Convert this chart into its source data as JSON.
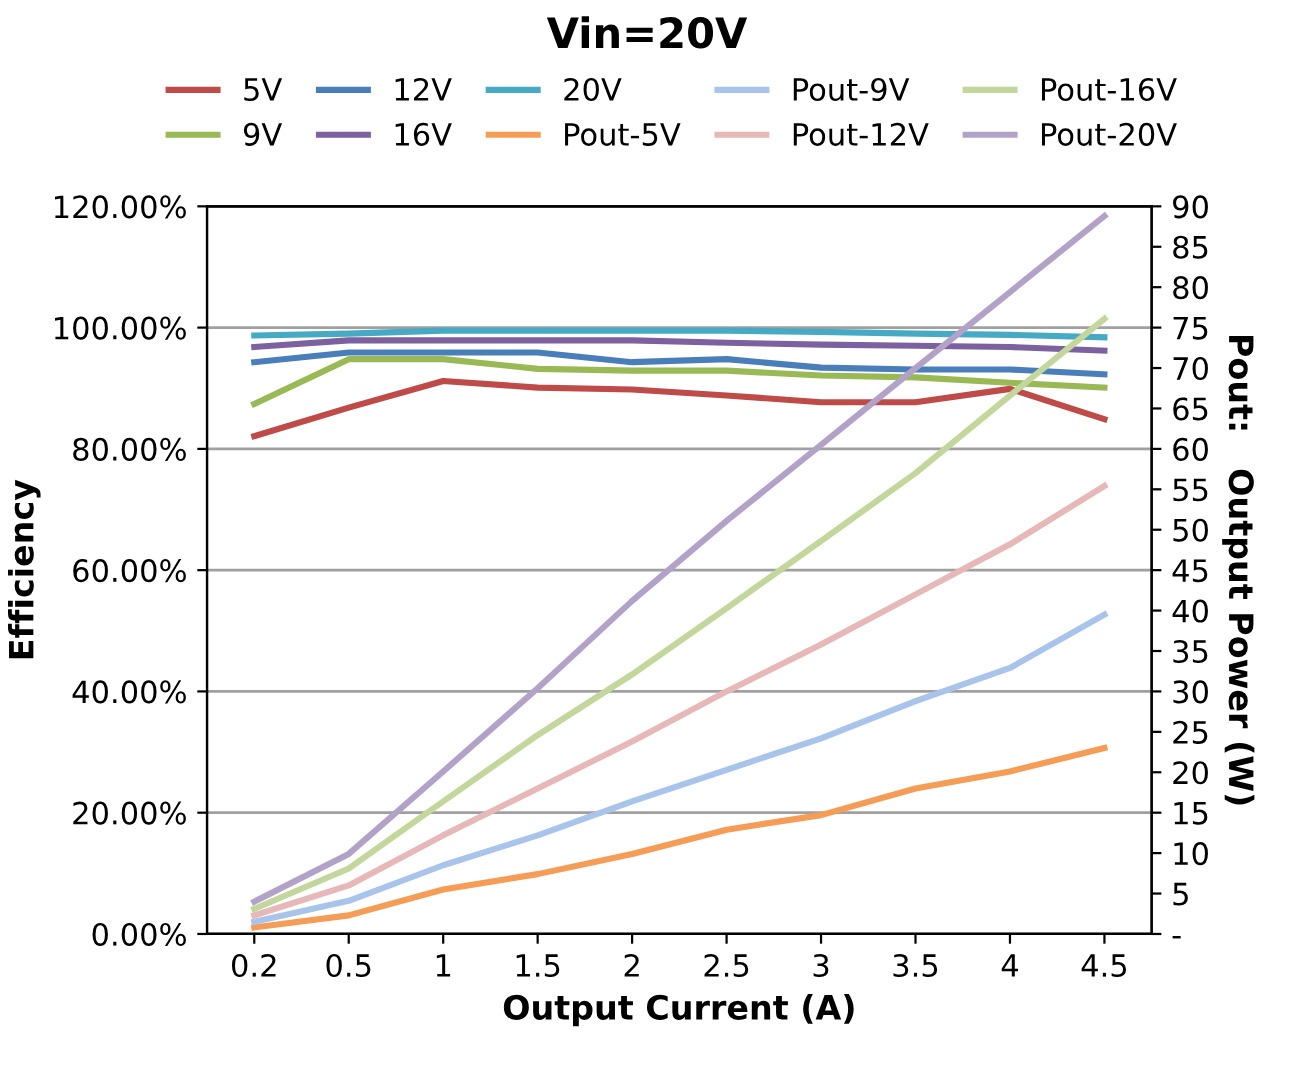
{
  "chart_data": {
    "type": "line",
    "title": "Vin=20V",
    "xlabel": "Output Current (A)",
    "ylabel": "Efficiency",
    "y2label": "Pout:   Output Power (W)",
    "categories": [
      "0.2",
      "0.5",
      "1",
      "1.5",
      "2",
      "2.5",
      "3",
      "3.5",
      "4",
      "4.5"
    ],
    "series": [
      {
        "name": "5V",
        "color": "#be4b48",
        "values": [
          82.1,
          86.8,
          91.2,
          90.1,
          89.8,
          88.8,
          87.7,
          87.7,
          89.9,
          84.9
        ]
      },
      {
        "name": "9V",
        "color": "#98b954",
        "values": [
          87.4,
          94.8,
          94.8,
          93.2,
          92.9,
          92.9,
          92.1,
          91.8,
          90.9,
          90.1
        ]
      },
      {
        "name": "12V",
        "color": "#4a7ebb",
        "values": [
          94.3,
          95.9,
          95.9,
          95.9,
          94.3,
          94.8,
          93.4,
          93.1,
          93.1,
          92.3
        ]
      },
      {
        "name": "16V",
        "color": "#7d60a0",
        "values": [
          96.8,
          97.9,
          97.9,
          97.9,
          97.9,
          97.5,
          97.2,
          97.0,
          96.8,
          96.2
        ]
      },
      {
        "name": "20V",
        "color": "#46aac5",
        "values": [
          98.7,
          99.0,
          99.5,
          99.5,
          99.5,
          99.5,
          99.3,
          99.0,
          98.8,
          98.4
        ]
      },
      {
        "name": "Pout-5V",
        "color": "#f59d56",
        "axis": "y2",
        "values": [
          0.8,
          2.3,
          5.5,
          7.4,
          9.9,
          12.9,
          14.7,
          18.0,
          20.1,
          23.0
        ]
      },
      {
        "name": "Pout-9V",
        "color": "#a9c4eb",
        "axis": "y2",
        "values": [
          1.5,
          4.1,
          8.5,
          12.2,
          16.4,
          20.3,
          24.2,
          28.8,
          32.9,
          39.5
        ]
      },
      {
        "name": "Pout-12V",
        "color": "#e6b9b8",
        "axis": "y2",
        "values": [
          2.3,
          6.0,
          12.2,
          18.0,
          23.8,
          30.0,
          35.8,
          42.0,
          48.2,
          55.4
        ]
      },
      {
        "name": "Pout-16V",
        "color": "#c3d69b",
        "axis": "y2",
        "values": [
          3.1,
          8.1,
          16.4,
          24.6,
          32.1,
          40.3,
          48.6,
          57.0,
          66.6,
          76.1
        ]
      },
      {
        "name": "Pout-20V",
        "color": "#b3a2c7",
        "axis": "y2",
        "values": [
          4.0,
          9.9,
          20.1,
          30.4,
          41.2,
          51.1,
          60.5,
          70.0,
          79.4,
          88.8
        ]
      }
    ],
    "ylim": [
      0,
      120
    ],
    "yticks": [
      {
        "value": 0,
        "label": "0.00%"
      },
      {
        "value": 20,
        "label": "20.00%"
      },
      {
        "value": 40,
        "label": "40.00%"
      },
      {
        "value": 60,
        "label": "60.00%"
      },
      {
        "value": 80,
        "label": "80.00%"
      },
      {
        "value": 100,
        "label": "100.00%"
      },
      {
        "value": 120,
        "label": "120.00%"
      }
    ],
    "y2lim": [
      0,
      90
    ],
    "y2ticks": [
      {
        "value": 0,
        "label": "-"
      },
      5,
      10,
      15,
      20,
      25,
      30,
      35,
      40,
      45,
      50,
      55,
      60,
      65,
      70,
      75,
      80,
      85,
      90
    ],
    "grid": "y",
    "legend": "top",
    "marker": "none",
    "line_style": "solid"
  }
}
